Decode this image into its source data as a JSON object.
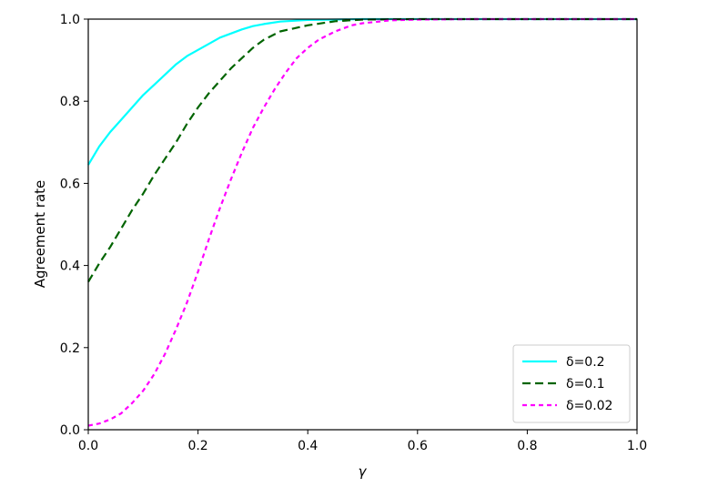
{
  "chart_data": {
    "type": "line",
    "xlabel": "γ",
    "ylabel": "Agreement rate",
    "xlim": [
      0.0,
      1.0
    ],
    "ylim": [
      0.0,
      1.0
    ],
    "xticks": [
      "0.0",
      "0.2",
      "0.4",
      "0.6",
      "0.8",
      "1.0"
    ],
    "yticks": [
      "0.0",
      "0.2",
      "0.4",
      "0.6",
      "0.8",
      "1.0"
    ],
    "grid": false,
    "legend_position": "lower-right",
    "series": [
      {
        "name": "δ=0.2",
        "color": "#00ffff",
        "style": "solid",
        "x": [
          0.0,
          0.02,
          0.04,
          0.06,
          0.08,
          0.1,
          0.12,
          0.14,
          0.16,
          0.18,
          0.2,
          0.22,
          0.24,
          0.26,
          0.28,
          0.3,
          0.32,
          0.35,
          0.4,
          0.45,
          0.5,
          0.6,
          0.7,
          0.8,
          0.9,
          1.0
        ],
        "y": [
          0.645,
          0.69,
          0.725,
          0.755,
          0.785,
          0.815,
          0.84,
          0.865,
          0.89,
          0.91,
          0.925,
          0.94,
          0.955,
          0.965,
          0.975,
          0.983,
          0.988,
          0.994,
          0.998,
          0.999,
          1.0,
          1.0,
          1.0,
          1.0,
          1.0,
          1.0
        ]
      },
      {
        "name": "δ=0.1",
        "color": "#006400",
        "style": "dashed",
        "x": [
          0.0,
          0.02,
          0.04,
          0.06,
          0.08,
          0.1,
          0.12,
          0.14,
          0.16,
          0.18,
          0.2,
          0.22,
          0.24,
          0.26,
          0.28,
          0.3,
          0.32,
          0.35,
          0.4,
          0.45,
          0.5,
          0.6,
          0.7,
          0.8,
          0.9,
          1.0
        ],
        "y": [
          0.36,
          0.405,
          0.445,
          0.49,
          0.535,
          0.575,
          0.62,
          0.66,
          0.7,
          0.745,
          0.785,
          0.82,
          0.85,
          0.88,
          0.905,
          0.93,
          0.95,
          0.97,
          0.985,
          0.995,
          0.999,
          1.0,
          1.0,
          1.0,
          1.0,
          1.0
        ]
      },
      {
        "name": "δ=0.02",
        "color": "#ff00ff",
        "style": "dotted-dash",
        "x": [
          0.0,
          0.02,
          0.04,
          0.06,
          0.08,
          0.1,
          0.12,
          0.14,
          0.16,
          0.18,
          0.2,
          0.22,
          0.24,
          0.26,
          0.28,
          0.3,
          0.32,
          0.34,
          0.36,
          0.38,
          0.4,
          0.42,
          0.45,
          0.48,
          0.5,
          0.55,
          0.6,
          0.7,
          0.8,
          0.9,
          1.0
        ],
        "y": [
          0.01,
          0.015,
          0.025,
          0.04,
          0.065,
          0.095,
          0.135,
          0.185,
          0.245,
          0.31,
          0.385,
          0.465,
          0.54,
          0.61,
          0.675,
          0.735,
          0.785,
          0.83,
          0.87,
          0.905,
          0.93,
          0.95,
          0.97,
          0.985,
          0.99,
          0.997,
          0.999,
          1.0,
          1.0,
          1.0,
          1.0
        ]
      }
    ]
  }
}
